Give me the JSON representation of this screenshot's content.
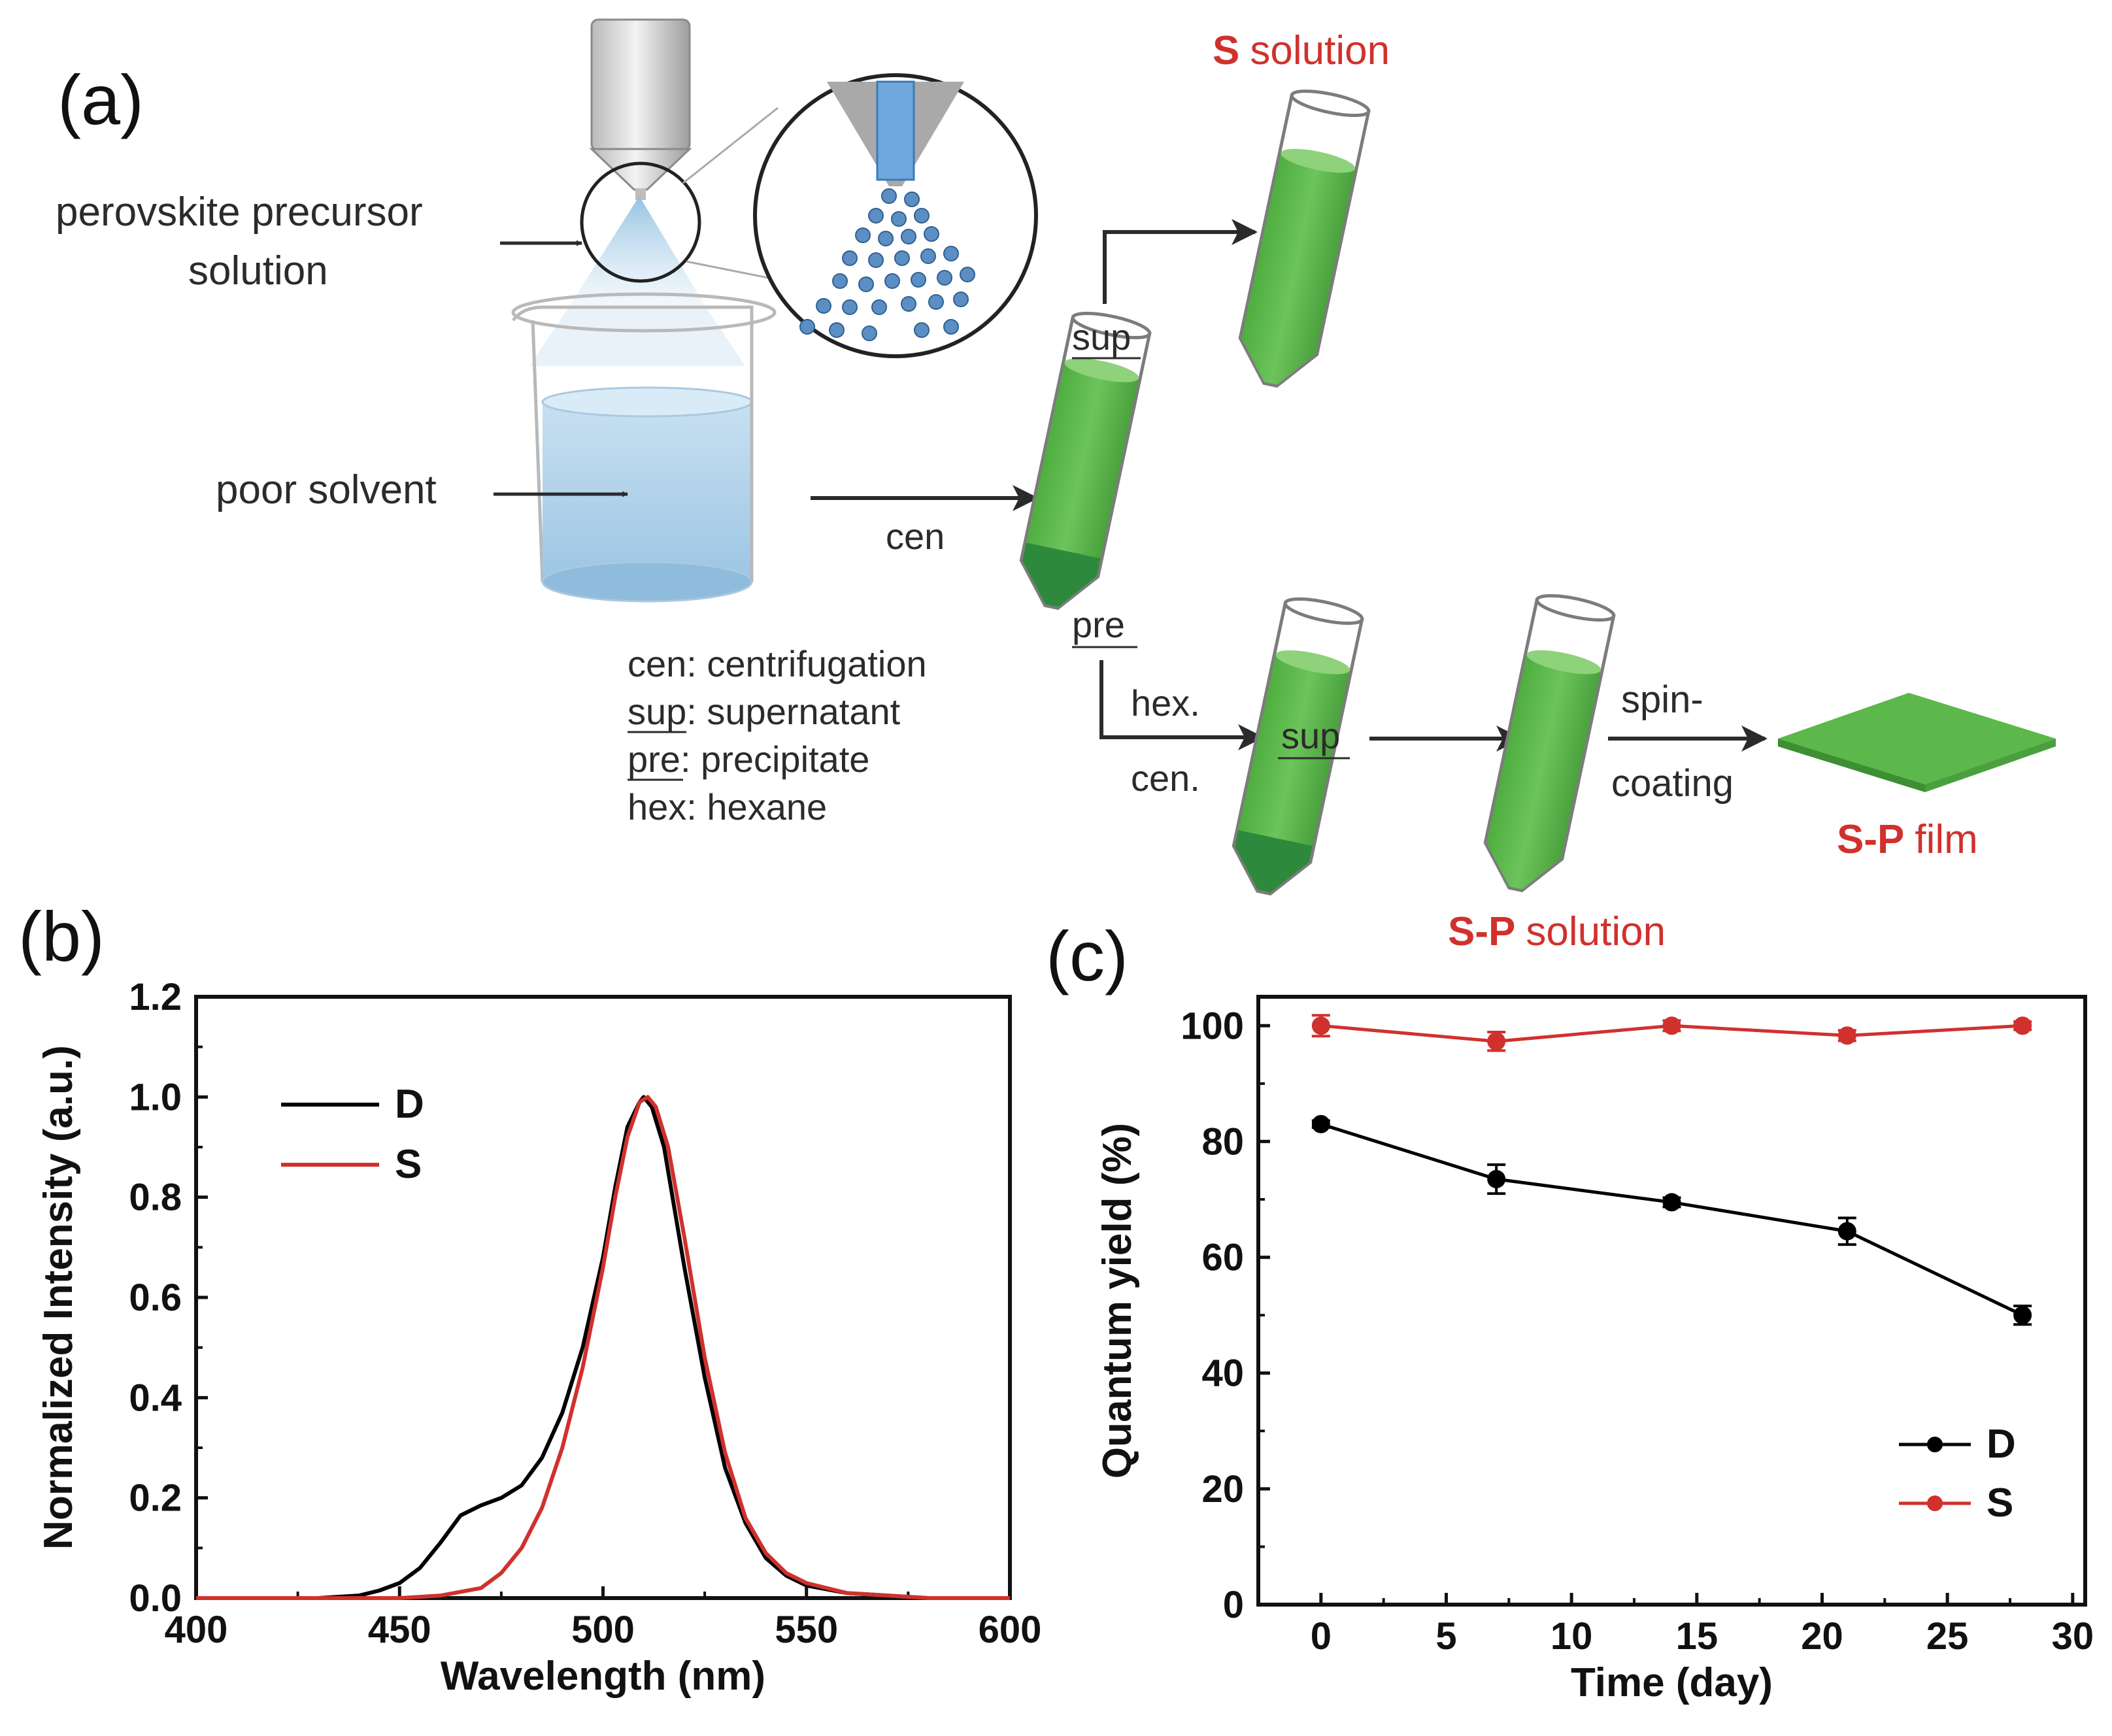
{
  "panel_a": {
    "label": "(a)",
    "precursor_label_line1": "perovskite precursor",
    "precursor_label_line2": "solution",
    "poor_solvent_label": "poor solvent",
    "cen_label": "cen",
    "sup_label": "sup",
    "pre_label": "pre",
    "s_solution_bold": "S",
    "s_solution_rest": "solution",
    "hex_label": "hex.",
    "cen2_label": "cen.",
    "sup2_label": "sup",
    "spin_label1": "spin-",
    "spin_label2": "coating",
    "sp_solution_bold": "S-P",
    "sp_solution_rest": "solution",
    "sp_film_bold": "S-P",
    "sp_film_rest": "film",
    "legend": [
      {
        "abbr": "cen",
        "text": ": centrifugation"
      },
      {
        "abbr": "sup",
        "text": ": supernatant"
      },
      {
        "abbr": "pre",
        "text": ": precipitate"
      },
      {
        "abbr": "hex",
        "text": ": hexane"
      }
    ],
    "colors": {
      "liquid": "#5cb84a",
      "liquid_dark": "#2d8a3c",
      "water": "#a9cfe8",
      "red": "#d0312d"
    }
  },
  "panel_b_label": "(b)",
  "panel_c_label": "(c)",
  "chart_data": [
    {
      "type": "line",
      "title": "",
      "xlabel": "Wavelength (nm)",
      "ylabel": "Normalized Intensity (a.u.)",
      "xlim": [
        400,
        600
      ],
      "ylim": [
        0.0,
        1.2
      ],
      "xticks": [
        "400",
        "450",
        "500",
        "550",
        "600"
      ],
      "yticks": [
        "0.0",
        "0.2",
        "0.4",
        "0.6",
        "0.8",
        "1.0",
        "1.2"
      ],
      "legend_position": "top-left",
      "series": [
        {
          "name": "D",
          "color": "#000000",
          "x": [
            400,
            430,
            440,
            445,
            450,
            455,
            460,
            465,
            470,
            475,
            480,
            485,
            490,
            495,
            500,
            503,
            506,
            509,
            510,
            512,
            515,
            520,
            525,
            530,
            535,
            540,
            545,
            550,
            560,
            570,
            580,
            600
          ],
          "y": [
            0,
            0,
            0.005,
            0.015,
            0.03,
            0.06,
            0.11,
            0.165,
            0.185,
            0.2,
            0.225,
            0.28,
            0.37,
            0.5,
            0.68,
            0.82,
            0.94,
            0.99,
            1.0,
            0.98,
            0.9,
            0.66,
            0.44,
            0.26,
            0.15,
            0.08,
            0.045,
            0.025,
            0.01,
            0.005,
            0,
            0
          ]
        },
        {
          "name": "S",
          "color": "#d0312d",
          "x": [
            400,
            450,
            460,
            470,
            475,
            480,
            485,
            490,
            495,
            500,
            503,
            506,
            509,
            511,
            513,
            516,
            520,
            525,
            530,
            535,
            540,
            545,
            550,
            560,
            570,
            580,
            600
          ],
          "y": [
            0,
            0,
            0.005,
            0.02,
            0.05,
            0.1,
            0.18,
            0.3,
            0.46,
            0.66,
            0.8,
            0.92,
            0.99,
            1.0,
            0.98,
            0.9,
            0.72,
            0.48,
            0.29,
            0.16,
            0.09,
            0.05,
            0.03,
            0.01,
            0.005,
            0,
            0
          ]
        }
      ]
    },
    {
      "type": "line",
      "title": "",
      "xlabel": "Time (day)",
      "ylabel": "Quantum yield (%)",
      "xlim": [
        -2.5,
        30.5
      ],
      "ylim": [
        0,
        105
      ],
      "xticks": [
        "0",
        "5",
        "10",
        "15",
        "20",
        "25",
        "30"
      ],
      "yticks": [
        "0",
        "20",
        "40",
        "60",
        "80",
        "100"
      ],
      "legend_position": "bottom-right",
      "series": [
        {
          "name": "D",
          "color": "#000000",
          "x": [
            0,
            7,
            14,
            21,
            28
          ],
          "y": [
            83,
            73.5,
            69.5,
            64.5,
            50
          ],
          "err": [
            0.6,
            2.5,
            0.8,
            2.3,
            1.6
          ]
        },
        {
          "name": "S",
          "color": "#d0312d",
          "x": [
            0,
            7,
            14,
            21,
            28
          ],
          "y": [
            100,
            97.3,
            100,
            98.3,
            100
          ],
          "err": [
            1.8,
            1.6,
            0.9,
            0.9,
            0.7
          ]
        }
      ]
    }
  ]
}
